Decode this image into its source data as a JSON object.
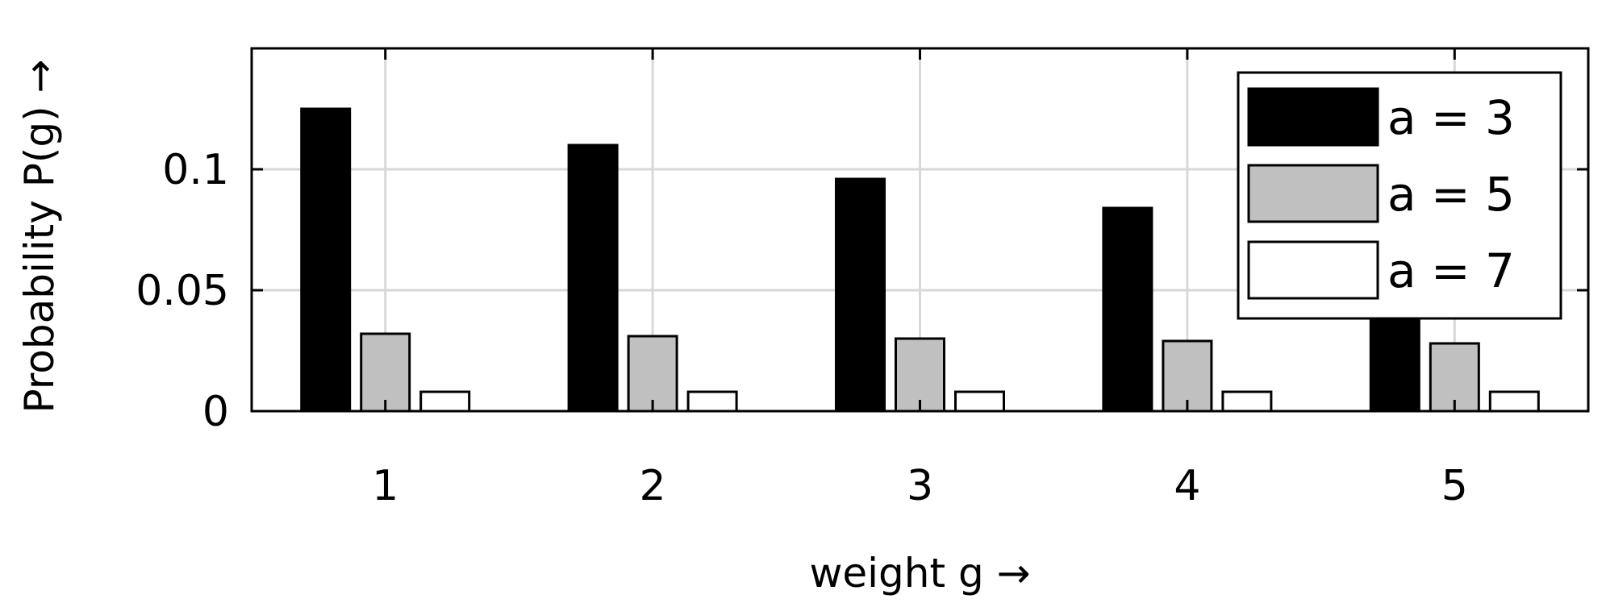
{
  "chart_data": {
    "type": "bar",
    "categories": [
      "1",
      "2",
      "3",
      "4",
      "5"
    ],
    "series": [
      {
        "name": "a = 3",
        "values": [
          0.125,
          0.11,
          0.096,
          0.084,
          0.073
        ],
        "color": "#000000"
      },
      {
        "name": "a = 5",
        "values": [
          0.032,
          0.031,
          0.03,
          0.029,
          0.028
        ],
        "color": "#c0c0c0"
      },
      {
        "name": "a = 7",
        "values": [
          0.008,
          0.008,
          0.008,
          0.008,
          0.008
        ],
        "color": "#ffffff"
      }
    ],
    "xlabel": "weight g →",
    "ylabel": "Probability P(g) →",
    "ylim": [
      0,
      0.15
    ],
    "yticks": [
      {
        "value": 0,
        "label": "0"
      },
      {
        "value": 0.05,
        "label": "0.05"
      },
      {
        "value": 0.1,
        "label": "0.1"
      }
    ],
    "grid": true,
    "legend_position": "top-right"
  }
}
